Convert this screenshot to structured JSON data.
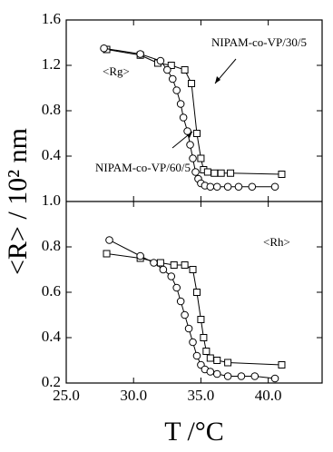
{
  "chart_data": [
    {
      "type": "line",
      "ylabel": "<R> / 10² nm",
      "annotation": "<Rg>",
      "ylim": [
        0,
        1.6
      ],
      "yticks": [
        0.4,
        0.8,
        1.2,
        1.6
      ],
      "series": [
        {
          "name": "NIPAM-co-VP/30/5",
          "marker": "square",
          "color": "#000000",
          "x": [
            28.0,
            30.5,
            31.8,
            32.8,
            33.8,
            34.3,
            34.7,
            35.0,
            35.2,
            35.5,
            36.0,
            36.5,
            37.2,
            41.0
          ],
          "values": [
            1.34,
            1.29,
            1.22,
            1.2,
            1.16,
            1.04,
            0.6,
            0.38,
            0.28,
            0.26,
            0.25,
            0.25,
            0.25,
            0.24
          ]
        },
        {
          "name": "NIPAM-co-VP/60/5",
          "marker": "circle",
          "color": "#000000",
          "x": [
            27.8,
            30.5,
            32.0,
            32.5,
            32.9,
            33.2,
            33.5,
            33.7,
            34.0,
            34.2,
            34.4,
            34.6,
            34.8,
            35.0,
            35.3,
            35.7,
            36.2,
            37.0,
            37.8,
            38.8,
            40.5
          ],
          "values": [
            1.35,
            1.3,
            1.24,
            1.16,
            1.08,
            0.98,
            0.86,
            0.74,
            0.62,
            0.5,
            0.38,
            0.26,
            0.2,
            0.16,
            0.14,
            0.13,
            0.13,
            0.13,
            0.13,
            0.13,
            0.13
          ]
        }
      ]
    },
    {
      "type": "line",
      "xlabel": "T /°C",
      "annotation": "<Rh>",
      "xlim": [
        25,
        44
      ],
      "xticks": [
        {
          "value": 25,
          "label": "25.0"
        },
        {
          "value": 30,
          "label": "30.0"
        },
        {
          "value": 35,
          "label": "35.0"
        },
        {
          "value": 40,
          "label": "40.0"
        }
      ],
      "ylim": [
        0.2,
        1.0
      ],
      "yticks": [
        0.2,
        0.4,
        0.6,
        0.8,
        {
          "value": 1.0,
          "label": "1.0"
        }
      ],
      "series": [
        {
          "marker": "square",
          "color": "#000000",
          "x": [
            28.0,
            30.5,
            32.0,
            33.0,
            33.8,
            34.4,
            34.7,
            35.0,
            35.2,
            35.4,
            35.7,
            36.2,
            37.0,
            41.0
          ],
          "values": [
            0.77,
            0.75,
            0.73,
            0.72,
            0.72,
            0.7,
            0.6,
            0.48,
            0.4,
            0.34,
            0.31,
            0.3,
            0.29,
            0.28
          ]
        },
        {
          "marker": "circle",
          "color": "#000000",
          "x": [
            28.2,
            30.5,
            31.5,
            32.2,
            32.8,
            33.2,
            33.5,
            33.8,
            34.1,
            34.4,
            34.7,
            35.0,
            35.3,
            35.7,
            36.2,
            37.0,
            38.0,
            39.0,
            40.5
          ],
          "values": [
            0.83,
            0.76,
            0.73,
            0.7,
            0.67,
            0.62,
            0.56,
            0.5,
            0.44,
            0.38,
            0.32,
            0.28,
            0.26,
            0.25,
            0.24,
            0.23,
            0.23,
            0.23,
            0.22
          ]
        }
      ]
    }
  ]
}
